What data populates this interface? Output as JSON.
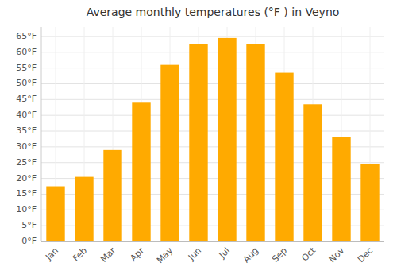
{
  "chart_data": {
    "type": "bar",
    "title": "Average monthly temperatures (°F ) in Veyno",
    "categories": [
      "Jan",
      "Feb",
      "Mar",
      "Apr",
      "May",
      "Jun",
      "Jul",
      "Aug",
      "Sep",
      "Oct",
      "Nov",
      "Dec"
    ],
    "values": [
      17.5,
      20.5,
      29.0,
      44.0,
      56.0,
      62.5,
      64.5,
      62.5,
      53.5,
      43.5,
      33.0,
      24.5
    ],
    "color": "#FFAA00",
    "ylim": [
      0,
      68
    ],
    "yticks": [
      {
        "value": 0,
        "label": "0°F"
      },
      {
        "value": 5,
        "label": "5°F"
      },
      {
        "value": 10,
        "label": "10°F"
      },
      {
        "value": 15,
        "label": "15°F"
      },
      {
        "value": 20,
        "label": "20°F"
      },
      {
        "value": 25,
        "label": "25°F"
      },
      {
        "value": 30,
        "label": "30°F"
      },
      {
        "value": 35,
        "label": "35°F"
      },
      {
        "value": 40,
        "label": "40°F"
      },
      {
        "value": 45,
        "label": "45°F"
      },
      {
        "value": 50,
        "label": "50°F"
      },
      {
        "value": 55,
        "label": "55°F"
      },
      {
        "value": 60,
        "label": "60°F"
      },
      {
        "value": 65,
        "label": "65°F"
      }
    ],
    "grid": true
  }
}
